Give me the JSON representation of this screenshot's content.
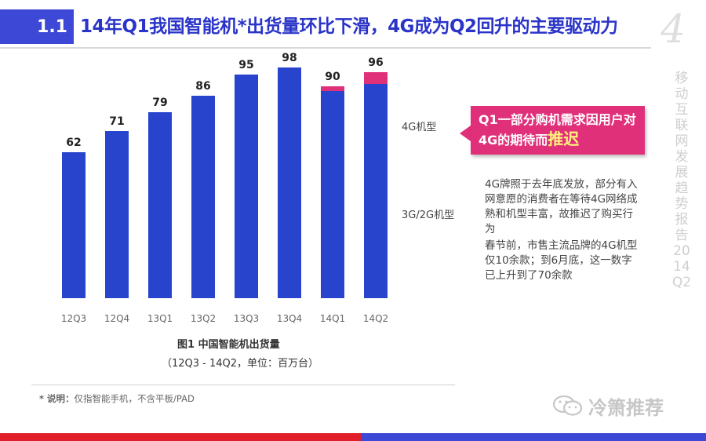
{
  "header": {
    "section_number": "1.1",
    "title": "14年Q1我国智能机*出货量环比下滑，4G成为Q2回升的主要驱动力",
    "corner_number": "4"
  },
  "side_label": "移动互联网发展趋势报告 2014Q2",
  "chart_data": {
    "type": "bar",
    "stacked": true,
    "categories": [
      "12Q3",
      "12Q4",
      "13Q1",
      "13Q2",
      "13Q3",
      "13Q4",
      "14Q1",
      "14Q2"
    ],
    "totals": [
      62,
      71,
      79,
      86,
      95,
      98,
      90,
      96
    ],
    "series": [
      {
        "name": "3G/2G机型",
        "color": "#2843cc",
        "values": [
          62,
          71,
          79,
          86,
          95,
          98,
          88,
          91
        ]
      },
      {
        "name": "4G机型",
        "color": "#e0307a",
        "values": [
          0,
          0,
          0,
          0,
          0,
          0,
          2,
          5
        ]
      }
    ],
    "ylim": [
      0,
      100
    ],
    "grid": false,
    "legend": "right"
  },
  "callout": {
    "text": "Q1一部分购机需求因用户对4G的期待而",
    "highlight": "推迟"
  },
  "notes": {
    "para1": "4G牌照于去年底发放，部分有入网意愿的消费者在等待4G网络成熟和机型丰富，故推迟了购买行为",
    "para2": "春节前，市售主流品牌的4G机型仅10余款；到6月底，这一数字已上升到了70余款"
  },
  "caption": {
    "title": "图1 中国智能机出货量",
    "subtitle": "（12Q3 - 14Q2，单位：百万台）"
  },
  "footnote": {
    "label": "* 说明：",
    "text": "仅指智能手机，不含平板/PAD"
  },
  "watermark": "冷箫推荐",
  "colors": {
    "brand_blue": "#3d48d6",
    "bar_blue": "#2843cc",
    "accent_pink": "#e0307a",
    "bottom_red": "#e01f2a"
  }
}
